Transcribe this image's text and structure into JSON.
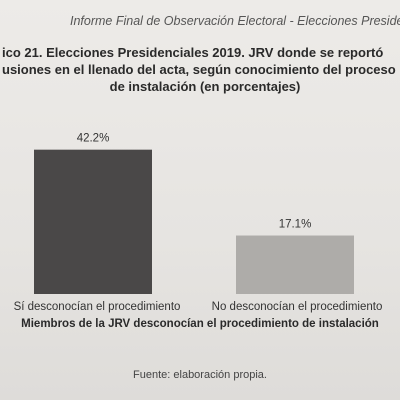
{
  "header": {
    "running_title": "Informe Final de Observación Electoral - Elecciones Presidenciales"
  },
  "chart_data": {
    "type": "bar",
    "title_lines": [
      "ico 21. Elecciones Presidenciales 2019. JRV donde se reportó",
      "usiones en el llenado del acta, según conocimiento del proceso",
      "de instalación (en porcentajes)"
    ],
    "categories": [
      "Sí desconocían el procedimiento",
      "No desconocían el procedimiento"
    ],
    "values": [
      42.2,
      17.1
    ],
    "data_labels": [
      "42.2%",
      "17.1%"
    ],
    "colors": [
      "#4a4848",
      "#aeaca9"
    ],
    "xlabel": "Miembros de la JRV desconocían el procedimiento de instalación",
    "ylim": [
      0,
      50
    ],
    "grid": false,
    "legend": "none"
  },
  "source": "Fuente: elaboración propia."
}
